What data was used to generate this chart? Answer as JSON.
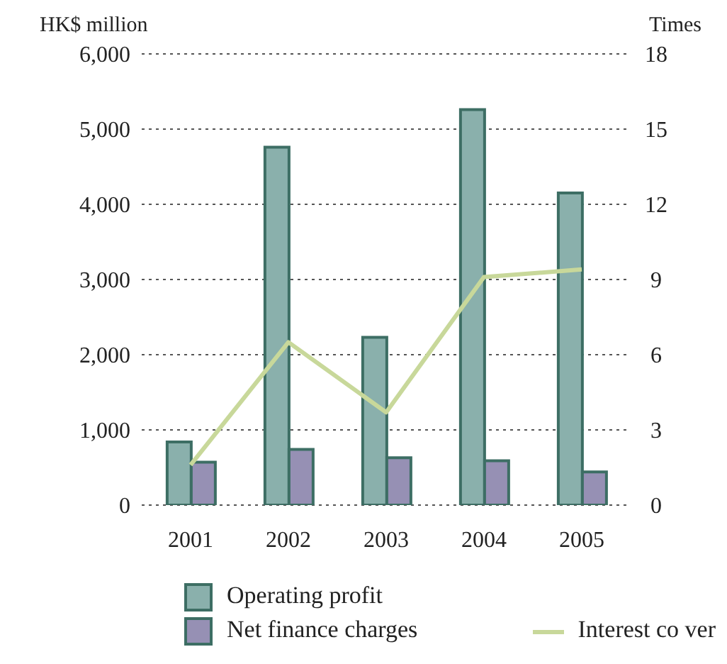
{
  "chart_data": {
    "type": "bar",
    "ylabel": "HK$ million",
    "y2label": "Times",
    "categories": [
      "2001",
      "2002",
      "2003",
      "2004",
      "2005"
    ],
    "series": [
      {
        "name": "Operating profit",
        "color": "#8ab0ac",
        "values": [
          840,
          4760,
          2230,
          5260,
          4150
        ]
      },
      {
        "name": "Net finance charges",
        "color": "#9690b4",
        "values": [
          570,
          740,
          630,
          590,
          440
        ]
      },
      {
        "name": "Interest co ver",
        "type": "line",
        "axis": "y2",
        "color": "#c8d89a",
        "values": [
          1.6,
          6.5,
          3.7,
          9.1,
          9.4
        ]
      }
    ],
    "ylim": [
      0,
      6000
    ],
    "yticks": [
      0,
      {
        "value": 1000,
        "label": "1,000"
      },
      {
        "value": 2000,
        "label": "2,000"
      },
      {
        "value": 3000,
        "label": "3,000"
      },
      {
        "value": 4000,
        "label": "4,000"
      },
      {
        "value": 5000,
        "label": "5,000"
      },
      {
        "value": 6000,
        "label": "6,000"
      }
    ],
    "y2lim": [
      0,
      18
    ],
    "y2ticks": [
      0,
      3,
      6,
      9,
      12,
      15,
      18
    ],
    "grid": "y",
    "legend": "bottom"
  }
}
